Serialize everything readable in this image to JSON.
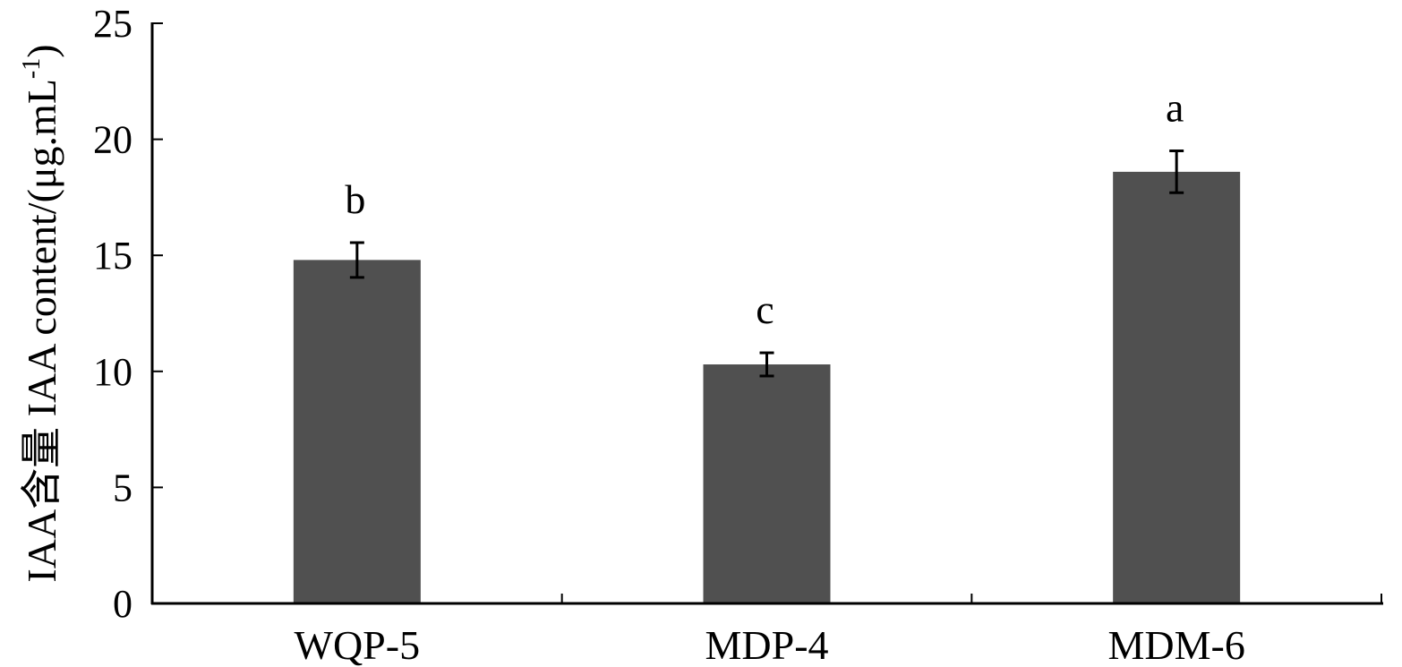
{
  "chart_data": {
    "type": "bar",
    "title": "",
    "xlabel": "",
    "ylabel": "IAA含量 IAA content/(μg.mL",
    "ylabel_superscript": "-1",
    "ylabel_close": ")",
    "ylim": [
      0,
      25
    ],
    "yticks": [
      0,
      5,
      10,
      15,
      20,
      25
    ],
    "grid": false,
    "categories": [
      "WQP-5",
      "MDP-4",
      "MDM-6"
    ],
    "values": [
      14.8,
      10.3,
      18.6
    ],
    "errors": [
      0.75,
      0.5,
      0.9
    ],
    "significance_letters": [
      "b",
      "c",
      "a"
    ],
    "bar_color": "#505050",
    "error_bar_color": "#000000"
  }
}
